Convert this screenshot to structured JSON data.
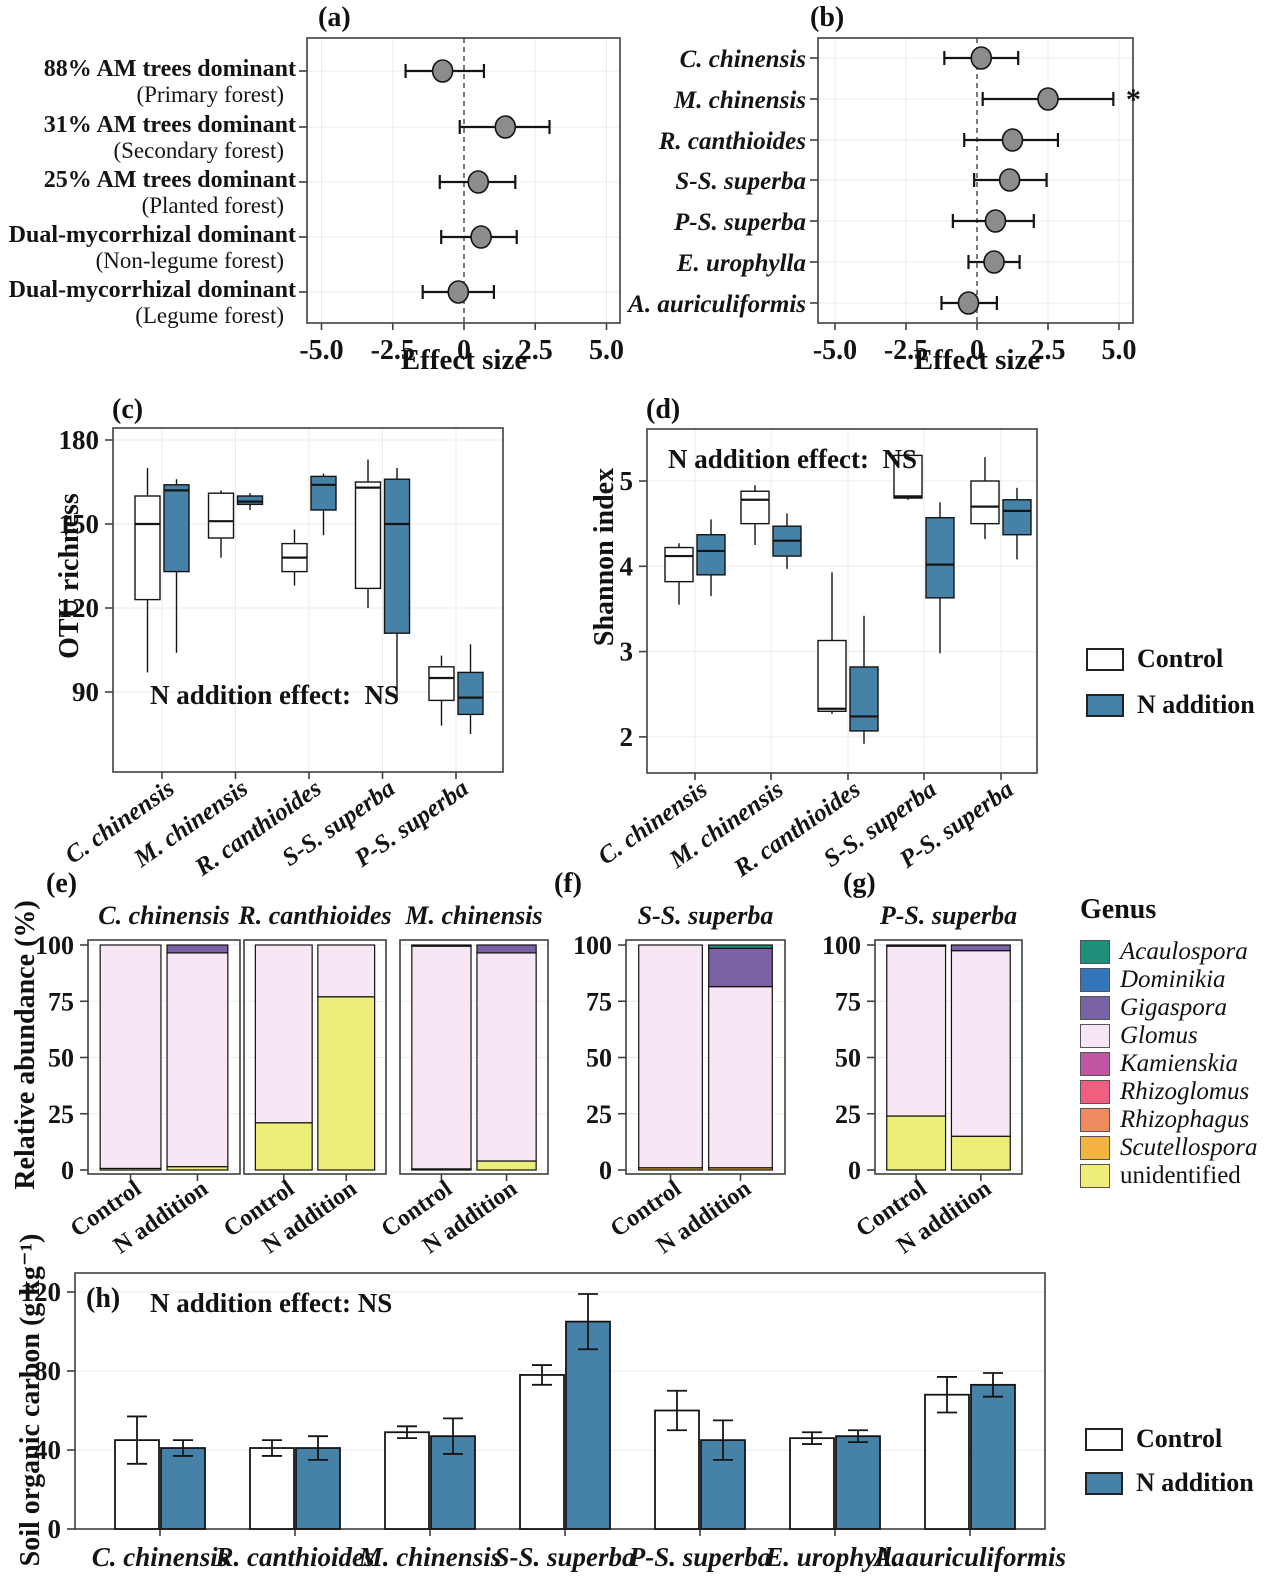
{
  "colors": {
    "n_addition": "#4681A8",
    "control": "#FFFFFF",
    "point_fill": "#8C8C8C",
    "genus": {
      "Acaulospora": "#1E8F78",
      "Dominikia": "#3474B8",
      "Gigaspora": "#7B62A7",
      "Glomus": "#F7E6F4",
      "Kamienskia": "#C155A3",
      "Rhizoglomus": "#EE5F80",
      "Rhizophagus": "#F08A5F",
      "Scutellospora": "#F5B342",
      "unidentified": "#EDED79"
    }
  },
  "legend": {
    "control": "Control",
    "n_addition": "N addition"
  },
  "genus_legend": {
    "title": "Genus",
    "items": [
      "Acaulospora",
      "Dominikia",
      "Gigaspora",
      "Glomus",
      "Kamienskia",
      "Rhizoglomus",
      "Rhizophagus",
      "Scutellospora",
      "unidentified"
    ]
  },
  "chart_data": {
    "a": {
      "letter": "(a)",
      "type": "forest",
      "xlabel": "Effect size",
      "xticks": [
        -5,
        -2.5,
        0,
        2.5,
        5
      ],
      "xtick_labels": [
        "-5.0",
        "-2.5",
        "0",
        "2.5",
        "5.0"
      ],
      "xlim": [
        -5.6,
        5.5
      ],
      "rows": [
        {
          "label1": "88% AM trees dominant",
          "label2": "(Primary forest)",
          "est": -0.75,
          "lo": -2.05,
          "hi": 0.7,
          "sig": ""
        },
        {
          "label1": "31% AM trees dominant",
          "label2": "(Secondary forest)",
          "est": 1.45,
          "lo": -0.15,
          "hi": 3.0,
          "sig": ""
        },
        {
          "label1": "25% AM trees dominant",
          "label2": "(Planted forest)",
          "est": 0.5,
          "lo": -0.85,
          "hi": 1.8,
          "sig": ""
        },
        {
          "label1": "Dual-mycorrhizal dominant",
          "label2": "(Non-legume forest)",
          "est": 0.6,
          "lo": -0.8,
          "hi": 1.85,
          "sig": ""
        },
        {
          "label1": "Dual-mycorrhizal dominant",
          "label2": "(Legume forest)",
          "est": -0.2,
          "lo": -1.45,
          "hi": 1.05,
          "sig": ""
        }
      ]
    },
    "b": {
      "letter": "(b)",
      "type": "forest",
      "xlabel": "Effect size",
      "xticks": [
        -5,
        -2.5,
        0,
        2.5,
        5
      ],
      "xtick_labels": [
        "-5.0",
        "-2.5",
        "0",
        "2.5",
        "5.0"
      ],
      "xlim": [
        -5.6,
        5.5
      ],
      "rows": [
        {
          "name": "C. chinensis",
          "est": 0.15,
          "lo": -1.15,
          "hi": 1.45,
          "sig": ""
        },
        {
          "name": "M. chinensis",
          "est": 2.5,
          "lo": 0.2,
          "hi": 4.8,
          "sig": "*"
        },
        {
          "name": "R. canthioides",
          "est": 1.25,
          "lo": -0.45,
          "hi": 2.85,
          "sig": ""
        },
        {
          "name": "S-S. superba",
          "est": 1.15,
          "lo": -0.1,
          "hi": 2.45,
          "sig": ""
        },
        {
          "name": "P-S. superba",
          "est": 0.65,
          "lo": -0.85,
          "hi": 2.0,
          "sig": ""
        },
        {
          "name": "E. urophylla",
          "est": 0.6,
          "lo": -0.3,
          "hi": 1.5,
          "sig": ""
        },
        {
          "name": "A. auriculiformis",
          "est": -0.3,
          "lo": -1.25,
          "hi": 0.7,
          "sig": ""
        }
      ]
    },
    "c": {
      "letter": "(c)",
      "type": "boxplot",
      "ylabel": "OTU richness",
      "note": "N addition effect:  NS",
      "yticks": [
        180,
        150,
        120,
        90
      ],
      "ylim": [
        68,
        184
      ],
      "categories": [
        "C. chinensis",
        "M. chinensis",
        "R. canthioides",
        "S-S. superba",
        "P-S. superba"
      ],
      "series": [
        {
          "name": "Control",
          "stats": [
            [
              97,
              123,
              150,
              160,
              170
            ],
            [
              138,
              145,
              151,
              161,
              162
            ],
            [
              128,
              133,
              138,
              143,
              148
            ],
            [
              120,
              127,
              163,
              165,
              173
            ],
            [
              78,
              87,
              95,
              99,
              103
            ]
          ]
        },
        {
          "name": "N addition",
          "stats": [
            [
              104,
              133,
              162,
              164,
              166
            ],
            [
              155,
              157,
              158,
              160,
              161
            ],
            [
              146,
              155,
              164,
              167,
              168
            ],
            [
              88,
              111,
              150,
              166,
              170
            ],
            [
              75,
              82,
              88,
              97,
              107
            ]
          ]
        }
      ]
    },
    "d": {
      "letter": "(d)",
      "type": "boxplot",
      "ylabel": "Shannon index",
      "note": "N addition effect:  NS",
      "yticks": [
        5,
        4,
        3,
        2
      ],
      "ylim": [
        1.6,
        5.6
      ],
      "categories": [
        "C. chinensis",
        "M. chinensis",
        "R. canthioides",
        "S-S. superba",
        "P-S. superba"
      ],
      "series": [
        {
          "name": "Control",
          "stats": [
            [
              3.55,
              3.82,
              4.12,
              4.22,
              4.27
            ],
            [
              4.25,
              4.5,
              4.78,
              4.88,
              4.95
            ],
            [
              2.27,
              2.3,
              2.33,
              3.13,
              3.93
            ],
            [
              4.78,
              4.8,
              4.82,
              5.3,
              5.32
            ],
            [
              4.32,
              4.5,
              4.7,
              5.0,
              5.28
            ]
          ]
        },
        {
          "name": "N addition",
          "stats": [
            [
              3.65,
              3.9,
              4.18,
              4.37,
              4.55
            ],
            [
              3.97,
              4.12,
              4.3,
              4.47,
              4.62
            ],
            [
              1.92,
              2.07,
              2.24,
              2.82,
              3.42
            ],
            [
              2.98,
              3.63,
              4.02,
              4.57,
              4.75
            ],
            [
              4.08,
              4.37,
              4.65,
              4.78,
              4.92
            ]
          ]
        }
      ]
    },
    "e": {
      "letter": "(e)",
      "type": "stacked-bar",
      "ylabel": "Relative abundance (%)",
      "yticks": [
        100,
        75,
        50,
        25,
        0
      ],
      "facets": [
        {
          "title": "C. chinensis",
          "bars": [
            {
              "label": "Control",
              "segments": [
                [
                  "unidentified",
                  0.7
                ],
                [
                  "Glomus",
                  99.3
                ]
              ]
            },
            {
              "label": "N addition",
              "segments": [
                [
                  "unidentified",
                  1.5
                ],
                [
                  "Glomus",
                  95.0
                ],
                [
                  "Gigaspora",
                  3.5
                ]
              ]
            }
          ]
        },
        {
          "title": "R. canthioides",
          "bars": [
            {
              "label": "Control",
              "segments": [
                [
                  "unidentified",
                  21
                ],
                [
                  "Glomus",
                  79
                ]
              ]
            },
            {
              "label": "N addition",
              "segments": [
                [
                  "unidentified",
                  77
                ],
                [
                  "Glomus",
                  23
                ]
              ]
            }
          ]
        },
        {
          "title": "M. chinensis",
          "bars": [
            {
              "label": "Control",
              "segments": [
                [
                  "unidentified",
                  0.5
                ],
                [
                  "Glomus",
                  99.0
                ],
                [
                  "Dominikia",
                  0.5
                ]
              ]
            },
            {
              "label": "N addition",
              "segments": [
                [
                  "unidentified",
                  4
                ],
                [
                  "Glomus",
                  92.5
                ],
                [
                  "Gigaspora",
                  3.5
                ]
              ]
            }
          ]
        }
      ]
    },
    "f": {
      "letter": "(f)",
      "type": "stacked-bar",
      "yticks": [
        100,
        75,
        50,
        25,
        0
      ],
      "facets": [
        {
          "title": "S-S. superba",
          "bars": [
            {
              "label": "Control",
              "segments": [
                [
                  "Scutellospora",
                  1
                ],
                [
                  "Glomus",
                  99
                ]
              ]
            },
            {
              "label": "N addition",
              "segments": [
                [
                  "Scutellospora",
                  1
                ],
                [
                  "Glomus",
                  80.5
                ],
                [
                  "Gigaspora",
                  17
                ],
                [
                  "Acaulospora",
                  1.5
                ]
              ]
            }
          ]
        }
      ]
    },
    "g": {
      "letter": "(g)",
      "type": "stacked-bar",
      "yticks": [
        100,
        75,
        50,
        25,
        0
      ],
      "facets": [
        {
          "title": "P-S. superba",
          "bars": [
            {
              "label": "Control",
              "segments": [
                [
                  "unidentified",
                  24
                ],
                [
                  "Glomus",
                  75.5
                ],
                [
                  "Gigaspora",
                  0.5
                ]
              ]
            },
            {
              "label": "N addition",
              "segments": [
                [
                  "unidentified",
                  15
                ],
                [
                  "Glomus",
                  82.5
                ],
                [
                  "Gigaspora",
                  2.5
                ]
              ]
            }
          ]
        }
      ]
    },
    "h": {
      "letter": "(h)",
      "type": "bar",
      "ylabel": "Soil organic carbon (g kg⁻¹)",
      "note": "N addition effect: NS",
      "yticks": [
        0,
        40,
        80,
        120
      ],
      "ylim": [
        0,
        130
      ],
      "categories": [
        "C. chinensis",
        "R. canthioides",
        "M. chinensis",
        "S-S. superba",
        "P-S. superba",
        "E. urophylla",
        "A. auriculiformis"
      ],
      "series": [
        {
          "name": "Control",
          "values": [
            45,
            41,
            49,
            78,
            60,
            46,
            68
          ],
          "errors": [
            12,
            4,
            3,
            5,
            10,
            3,
            9
          ]
        },
        {
          "name": "N addition",
          "values": [
            41,
            41,
            47,
            105,
            45,
            47,
            73
          ],
          "errors": [
            4,
            6,
            9,
            14,
            10,
            3,
            6
          ]
        }
      ]
    }
  }
}
